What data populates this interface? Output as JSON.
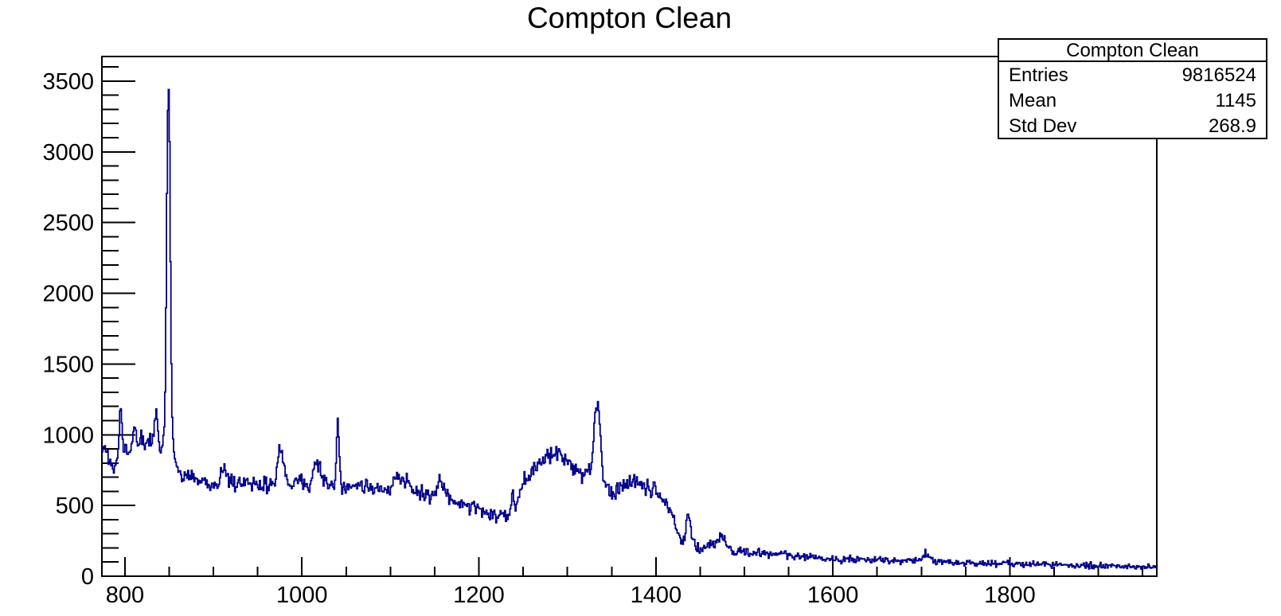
{
  "title": "Compton Clean",
  "stats_box": {
    "title": "Compton Clean",
    "rows": [
      {
        "label": "Entries",
        "value": "9816524"
      },
      {
        "label": "Mean",
        "value": "1145"
      },
      {
        "label": "Std Dev",
        "value": "268.9"
      }
    ]
  },
  "colors": {
    "background": "#ffffff",
    "axis": "#000000",
    "line": "#00008b"
  },
  "chart_data": {
    "type": "line",
    "subtype": "histogram-step",
    "title": "Compton Clean",
    "xlabel": "",
    "ylabel": "",
    "grid": false,
    "legend": false,
    "xlim": [
      774,
      1966
    ],
    "ylim": [
      0,
      3674
    ],
    "x_major_ticks": [
      800,
      1000,
      1200,
      1400,
      1600,
      1800
    ],
    "x_minor_step": 50,
    "y_major_ticks": [
      0,
      500,
      1000,
      1500,
      2000,
      2500,
      3000,
      3500
    ],
    "y_minor_step": 100,
    "y_minor_max": 3600,
    "line_color": "#00008b",
    "bin_width": 1,
    "noise_amplitude": 2.4,
    "noise_seed": 987654321,
    "anchors": [
      [
        774,
        900
      ],
      [
        777,
        930
      ],
      [
        780,
        860
      ],
      [
        783,
        800
      ],
      [
        786,
        770
      ],
      [
        788,
        758
      ],
      [
        790,
        830
      ],
      [
        793,
        920
      ],
      [
        795,
        1250
      ],
      [
        796,
        1150
      ],
      [
        798,
        900
      ],
      [
        800,
        880
      ],
      [
        802,
        930
      ],
      [
        804,
        900
      ],
      [
        806,
        880
      ],
      [
        808,
        950
      ],
      [
        811,
        1105
      ],
      [
        813,
        1000
      ],
      [
        815,
        905
      ],
      [
        817,
        950
      ],
      [
        819,
        975
      ],
      [
        822,
        905
      ],
      [
        825,
        945
      ],
      [
        828,
        990
      ],
      [
        831,
        955
      ],
      [
        833,
        1040
      ],
      [
        835,
        1160
      ],
      [
        837,
        1060
      ],
      [
        839,
        905
      ],
      [
        841,
        868
      ],
      [
        843,
        950
      ],
      [
        845,
        1100
      ],
      [
        846,
        1500
      ],
      [
        847,
        2300
      ],
      [
        848,
        3100
      ],
      [
        849,
        3483
      ],
      [
        850,
        3430
      ],
      [
        851,
        2700
      ],
      [
        852,
        1750
      ],
      [
        853,
        1250
      ],
      [
        854,
        1000
      ],
      [
        856,
        830
      ],
      [
        858,
        780
      ],
      [
        861,
        748
      ],
      [
        865,
        715
      ],
      [
        870,
        700
      ],
      [
        875,
        690
      ],
      [
        880,
        685
      ],
      [
        885,
        670
      ],
      [
        890,
        665
      ],
      [
        897,
        612
      ],
      [
        900,
        660
      ],
      [
        905,
        665
      ],
      [
        912,
        770
      ],
      [
        916,
        690
      ],
      [
        920,
        660
      ],
      [
        925,
        655
      ],
      [
        930,
        665
      ],
      [
        935,
        650
      ],
      [
        940,
        660
      ],
      [
        945,
        645
      ],
      [
        950,
        655
      ],
      [
        955,
        650
      ],
      [
        960,
        645
      ],
      [
        965,
        660
      ],
      [
        970,
        690
      ],
      [
        975,
        928
      ],
      [
        978,
        860
      ],
      [
        981,
        740
      ],
      [
        984,
        670
      ],
      [
        988,
        655
      ],
      [
        992,
        660
      ],
      [
        996,
        670
      ],
      [
        1000,
        680
      ],
      [
        1004,
        640
      ],
      [
        1008,
        630
      ],
      [
        1012,
        700
      ],
      [
        1015,
        790
      ],
      [
        1018,
        800
      ],
      [
        1021,
        740
      ],
      [
        1025,
        670
      ],
      [
        1029,
        640
      ],
      [
        1033,
        655
      ],
      [
        1036,
        600
      ],
      [
        1038,
        700
      ],
      [
        1040,
        1085
      ],
      [
        1041,
        1090
      ],
      [
        1042,
        900
      ],
      [
        1044,
        680
      ],
      [
        1046,
        600
      ],
      [
        1050,
        640
      ],
      [
        1055,
        650
      ],
      [
        1060,
        655
      ],
      [
        1065,
        640
      ],
      [
        1070,
        645
      ],
      [
        1075,
        635
      ],
      [
        1080,
        630
      ],
      [
        1085,
        625
      ],
      [
        1090,
        615
      ],
      [
        1095,
        620
      ],
      [
        1100,
        630
      ],
      [
        1105,
        660
      ],
      [
        1110,
        695
      ],
      [
        1114,
        700
      ],
      [
        1118,
        660
      ],
      [
        1122,
        635
      ],
      [
        1126,
        615
      ],
      [
        1130,
        600
      ],
      [
        1135,
        585
      ],
      [
        1140,
        575
      ],
      [
        1145,
        565
      ],
      [
        1150,
        570
      ],
      [
        1153,
        620
      ],
      [
        1156,
        660
      ],
      [
        1159,
        645
      ],
      [
        1162,
        600
      ],
      [
        1166,
        560
      ],
      [
        1170,
        545
      ],
      [
        1175,
        530
      ],
      [
        1180,
        520
      ],
      [
        1185,
        508
      ],
      [
        1190,
        498
      ],
      [
        1195,
        485
      ],
      [
        1200,
        470
      ],
      [
        1205,
        458
      ],
      [
        1210,
        448
      ],
      [
        1215,
        438
      ],
      [
        1220,
        430
      ],
      [
        1225,
        425
      ],
      [
        1230,
        423
      ],
      [
        1234,
        430
      ],
      [
        1236,
        470
      ],
      [
        1238,
        605
      ],
      [
        1240,
        540
      ],
      [
        1242,
        520
      ],
      [
        1245,
        570
      ],
      [
        1248,
        635
      ],
      [
        1251,
        670
      ],
      [
        1254,
        690
      ],
      [
        1257,
        705
      ],
      [
        1260,
        755
      ],
      [
        1264,
        785
      ],
      [
        1268,
        805
      ],
      [
        1272,
        820
      ],
      [
        1276,
        832
      ],
      [
        1280,
        840
      ],
      [
        1284,
        850
      ],
      [
        1288,
        858
      ],
      [
        1292,
        850
      ],
      [
        1296,
        835
      ],
      [
        1300,
        805
      ],
      [
        1304,
        790
      ],
      [
        1308,
        765
      ],
      [
        1312,
        745
      ],
      [
        1316,
        738
      ],
      [
        1320,
        740
      ],
      [
        1324,
        755
      ],
      [
        1327,
        790
      ],
      [
        1329,
        900
      ],
      [
        1331,
        1130
      ],
      [
        1333,
        1228
      ],
      [
        1335,
        1200
      ],
      [
        1337,
        1050
      ],
      [
        1339,
        800
      ],
      [
        1341,
        680
      ],
      [
        1344,
        635
      ],
      [
        1347,
        610
      ],
      [
        1350,
        565
      ],
      [
        1353,
        580
      ],
      [
        1356,
        615
      ],
      [
        1360,
        640
      ],
      [
        1364,
        650
      ],
      [
        1368,
        660
      ],
      [
        1372,
        665
      ],
      [
        1376,
        660
      ],
      [
        1380,
        655
      ],
      [
        1384,
        645
      ],
      [
        1388,
        632
      ],
      [
        1392,
        625
      ],
      [
        1396,
        618
      ],
      [
        1400,
        600
      ],
      [
        1404,
        570
      ],
      [
        1408,
        530
      ],
      [
        1412,
        505
      ],
      [
        1416,
        470
      ],
      [
        1420,
        405
      ],
      [
        1424,
        330
      ],
      [
        1427,
        270
      ],
      [
        1430,
        220
      ],
      [
        1433,
        280
      ],
      [
        1435,
        420
      ],
      [
        1436,
        460
      ],
      [
        1438,
        430
      ],
      [
        1440,
        310
      ],
      [
        1442,
        240
      ],
      [
        1445,
        205
      ],
      [
        1448,
        195
      ],
      [
        1452,
        195
      ],
      [
        1456,
        205
      ],
      [
        1460,
        215
      ],
      [
        1465,
        225
      ],
      [
        1470,
        250
      ],
      [
        1474,
        290
      ],
      [
        1478,
        250
      ],
      [
        1482,
        205
      ],
      [
        1488,
        182
      ],
      [
        1495,
        176
      ],
      [
        1505,
        170
      ],
      [
        1515,
        165
      ],
      [
        1525,
        162
      ],
      [
        1535,
        158
      ],
      [
        1545,
        153
      ],
      [
        1555,
        148
      ],
      [
        1565,
        143
      ],
      [
        1575,
        138
      ],
      [
        1585,
        133
      ],
      [
        1595,
        128
      ],
      [
        1605,
        124
      ],
      [
        1617,
        120
      ],
      [
        1629,
        116
      ],
      [
        1641,
        113
      ],
      [
        1653,
        111
      ],
      [
        1665,
        109
      ],
      [
        1677,
        107
      ],
      [
        1689,
        106
      ],
      [
        1697,
        110
      ],
      [
        1701,
        124
      ],
      [
        1704,
        152
      ],
      [
        1706,
        158
      ],
      [
        1709,
        138
      ],
      [
        1712,
        116
      ],
      [
        1716,
        104
      ],
      [
        1723,
        100
      ],
      [
        1731,
        97
      ],
      [
        1741,
        95
      ],
      [
        1751,
        94
      ],
      [
        1763,
        92
      ],
      [
        1776,
        91
      ],
      [
        1790,
        89
      ],
      [
        1805,
        87
      ],
      [
        1820,
        85
      ],
      [
        1835,
        83
      ],
      [
        1850,
        81
      ],
      [
        1865,
        79
      ],
      [
        1880,
        77
      ],
      [
        1895,
        75
      ],
      [
        1910,
        72
      ],
      [
        1925,
        70
      ],
      [
        1940,
        68
      ],
      [
        1955,
        66
      ],
      [
        1966,
        64
      ]
    ]
  }
}
